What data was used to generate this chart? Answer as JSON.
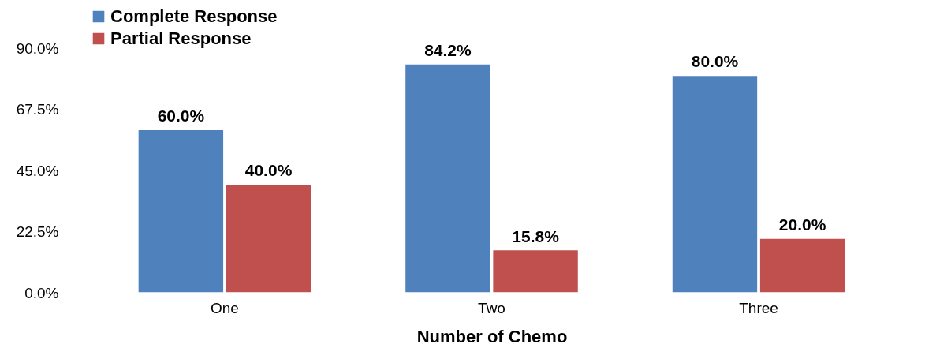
{
  "chart_data": {
    "type": "bar",
    "xlabel": "Number of Chemo",
    "categories": [
      "One",
      "Two",
      "Three"
    ],
    "series": [
      {
        "name": "Complete Response",
        "color": "#4f81bd",
        "values": [
          60.0,
          84.2,
          80.0
        ]
      },
      {
        "name": "Partial Response",
        "color": "#c0504d",
        "values": [
          40.0,
          15.8,
          20.0
        ]
      }
    ],
    "value_labels": [
      [
        "60.0%",
        "84.2%",
        "80.0%"
      ],
      [
        "40.0%",
        "15.8%",
        "20.0%"
      ]
    ],
    "ylim": [
      0,
      90
    ],
    "yticks": [
      {
        "value": 0,
        "label": "0.0%"
      },
      {
        "value": 22.5,
        "label": "22.5%"
      },
      {
        "value": 45,
        "label": "45.0%"
      },
      {
        "value": 67.5,
        "label": "67.5%"
      },
      {
        "value": 90,
        "label": "90.0%"
      }
    ],
    "grid": false,
    "legend": "top"
  }
}
